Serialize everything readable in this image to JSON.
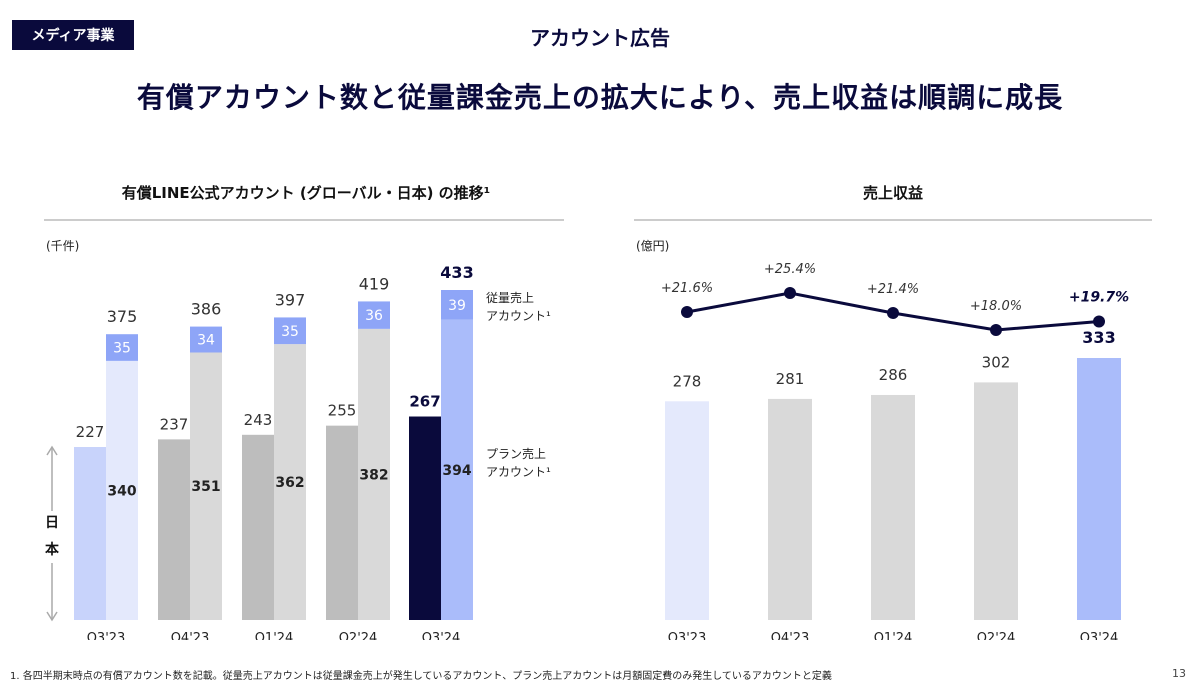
{
  "header": {
    "badge": "メディア事業",
    "section_title": "アカウント広告",
    "headline": "有償アカウント数と従量課金売上の拡大により、売上収益は順調に成長"
  },
  "footnote": "1.  各四半期末時点の有償アカウント数を記載。従量売上アカウントは従量課金売上が発生しているアカウント、プラン売上アカウントは月額固定費のみ発生しているアカウントと定義",
  "page_number": "13",
  "colors": {
    "navy": "#0a0a3c",
    "gray_dark": "#bdbdbd",
    "gray_light": "#d9d9d9",
    "blue_light": "#c8d3fb",
    "blue_lighter": "#e4e9fc",
    "blue_mid": "#8ea5f7",
    "blue_bar": "#aabcfa"
  },
  "chart_data": [
    {
      "type": "bar",
      "title": "有償LINE公式アカウント (グローバル・日本) の推移¹",
      "unit": "(千件)",
      "categories": [
        "Q3'23",
        "Q4'23",
        "Q1'24",
        "Q2'24",
        "Q3'24"
      ],
      "series": [
        {
          "values": [
            227,
            237,
            243,
            255,
            267
          ]
        },
        {
          "name": "プラン売上アカウント¹",
          "values": [
            340,
            351,
            362,
            382,
            394
          ]
        },
        {
          "name": "従量売上アカウント¹",
          "values": [
            35,
            34,
            35,
            36,
            39
          ]
        }
      ],
      "totals": [
        375,
        386,
        397,
        419,
        433
      ],
      "japan_label": "日本",
      "ylim": [
        0,
        433
      ]
    },
    {
      "type": "bar",
      "title": "売上収益",
      "unit": "(億円)",
      "categories": [
        "Q3'23",
        "Q4'23",
        "Q1'24",
        "Q2'24",
        "Q3'24"
      ],
      "values": [
        278,
        281,
        286,
        302,
        333
      ],
      "growth_line": {
        "type": "line",
        "labels": [
          "+21.6%",
          "+25.4%",
          "+21.4%",
          "+18.0%",
          "+19.7%"
        ],
        "values": [
          21.6,
          25.4,
          21.4,
          18.0,
          19.7
        ]
      },
      "ylim": [
        0,
        333
      ]
    }
  ]
}
